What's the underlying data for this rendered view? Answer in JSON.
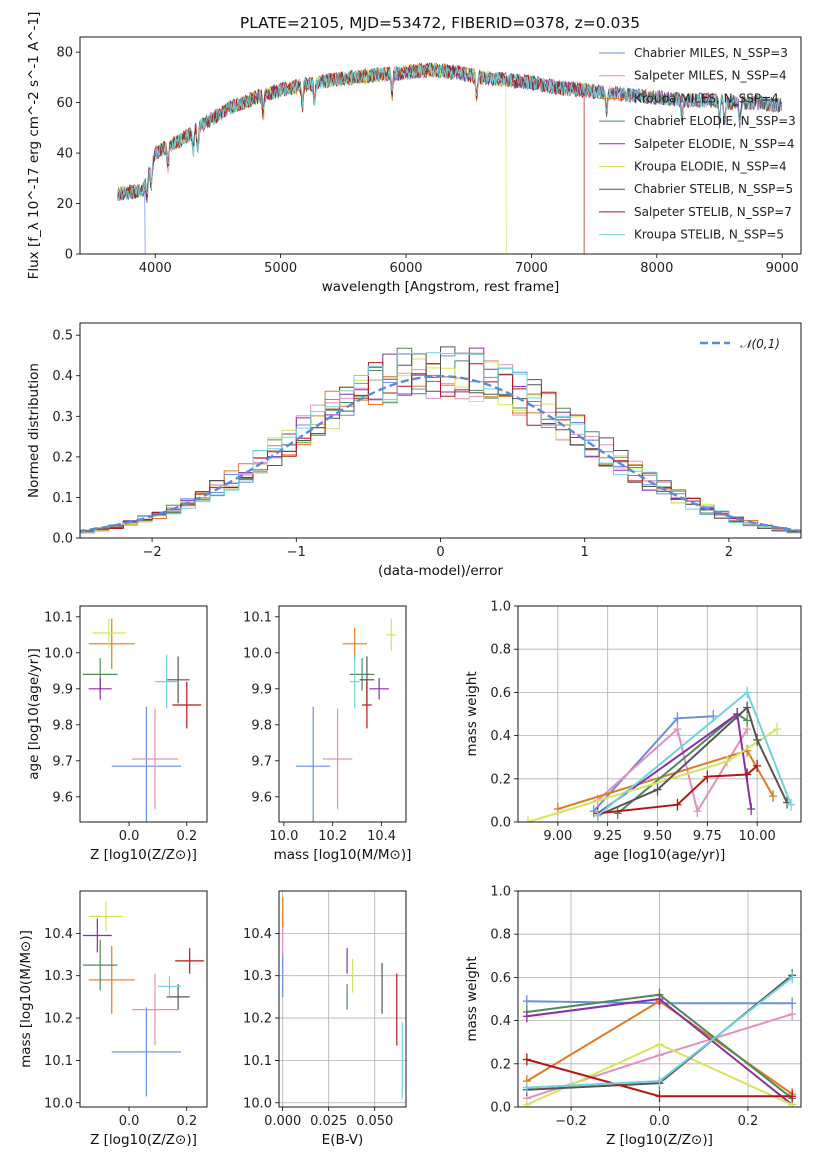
{
  "title": "PLATE=2105, MJD=53472, FIBERID=0378, z=0.035",
  "colors": {
    "chabrier_miles": "#6a8fdc",
    "salpeter_miles": "#e58fc0",
    "kroupa_miles": "#e07b22",
    "chabrier_elodie": "#4f8a5a",
    "salpeter_elodie": "#8b2ea8",
    "kroupa_elodie": "#d4e65a",
    "chabrier_stelib": "#555555",
    "salpeter_stelib": "#b21818",
    "kroupa_stelib": "#6fd3de",
    "normal_curve": "#5b8ad8"
  },
  "legend_entries": [
    "Chabrier MILES, N_SSP=3",
    "Salpeter MILES, N_SSP=4",
    "Kroupa MILES, N_SSP=4",
    "Chabrier ELODIE, N_SSP=3",
    "Salpeter ELODIE, N_SSP=4",
    "Kroupa ELODIE, N_SSP=4",
    "Chabrier STELIB, N_SSP=5",
    "Salpeter STELIB, N_SSP=7",
    "Kroupa STELIB, N_SSP=5"
  ],
  "chart_data": [
    {
      "id": "spectrum",
      "type": "line",
      "title": "PLATE=2105, MJD=53472, FIBERID=0378, z=0.035",
      "xlabel": "wavelength [Angstrom, rest frame]",
      "ylabel": "Flux [f_λ 10^-17 erg cm^-2 s^-1 A^-1]",
      "xlim": [
        3400,
        9150
      ],
      "ylim": [
        0,
        86
      ],
      "xticks": [
        4000,
        5000,
        6000,
        7000,
        8000,
        9000
      ],
      "yticks": [
        0,
        20,
        40,
        60,
        80
      ],
      "continuum": {
        "wavelength": [
          3700,
          3900,
          4000,
          4200,
          4400,
          4600,
          4800,
          5000,
          5200,
          5400,
          5600,
          5800,
          6000,
          6200,
          6400,
          6600,
          6800,
          7000,
          7200,
          7400,
          7600,
          7800,
          8000,
          8200,
          8400,
          8600,
          8800,
          9000
        ],
        "flux": [
          24,
          25,
          40,
          45,
          52,
          58,
          62,
          65,
          67,
          69,
          70,
          71,
          72,
          73,
          72,
          70,
          69,
          68,
          66,
          65,
          64,
          63,
          62,
          61,
          61,
          60,
          60,
          59
        ]
      },
      "cutoffs": [
        {
          "series": "Salpeter STELIB, N_SSP=7",
          "wavelength": 7420
        },
        {
          "series": "Kroupa ELODIE, N_SSP=4",
          "wavelength": 6800
        },
        {
          "series": "Chabrier MILES, N_SSP=3",
          "wavelength": 3920
        }
      ],
      "legend": "upper right"
    },
    {
      "id": "residuals",
      "type": "histogram",
      "xlabel": "(data-model)/error",
      "ylabel": "Normed distribution",
      "xlim": [
        -2.5,
        2.5
      ],
      "ylim": [
        0,
        0.53
      ],
      "xticks": [
        -2,
        -1,
        0,
        1,
        2
      ],
      "yticks": [
        0.0,
        0.1,
        0.2,
        0.3,
        0.4,
        0.5
      ],
      "grid": true,
      "reference": {
        "name": "𝒩(0,1)",
        "mean": 0,
        "sigma": 1
      },
      "legend": "upper right"
    },
    {
      "id": "age_vs_Z",
      "type": "scatter",
      "xlabel": "Z [log10(Z/Z⊙)]",
      "ylabel": "age [log10(age/yr)]",
      "xlim": [
        -0.17,
        0.27
      ],
      "ylim": [
        9.53,
        10.13
      ],
      "xticks": [
        0.0,
        0.2
      ],
      "yticks": [
        9.6,
        9.7,
        9.8,
        9.9,
        10.0,
        10.1
      ],
      "points": [
        {
          "x": 0.06,
          "y": 9.685,
          "xerr": 0.12,
          "yerr": 0.165
        },
        {
          "x": 0.09,
          "y": 9.705,
          "xerr": 0.08,
          "yerr": 0.14
        },
        {
          "x": -0.06,
          "y": 10.025,
          "xerr": 0.08,
          "yerr": 0.07
        },
        {
          "x": -0.1,
          "y": 9.94,
          "xerr": 0.06,
          "yerr": 0.045
        },
        {
          "x": -0.1,
          "y": 9.9,
          "xerr": 0.04,
          "yerr": 0.03
        },
        {
          "x": -0.07,
          "y": 10.055,
          "xerr": 0.06,
          "yerr": 0.04
        },
        {
          "x": 0.17,
          "y": 9.925,
          "xerr": 0.04,
          "yerr": 0.065
        },
        {
          "x": 0.2,
          "y": 9.855,
          "xerr": 0.05,
          "yerr": 0.065
        },
        {
          "x": 0.13,
          "y": 9.92,
          "xerr": 0.04,
          "yerr": 0.075
        }
      ]
    },
    {
      "id": "age_vs_mass",
      "type": "scatter",
      "xlabel": "mass [log10(M/M⊙)]",
      "ylabel": "",
      "xlim": [
        9.98,
        10.5
      ],
      "ylim": [
        9.53,
        10.13
      ],
      "xticks": [
        10.0,
        10.2,
        10.4
      ],
      "yticks": [
        9.6,
        9.7,
        9.8,
        9.9,
        10.0,
        10.1
      ],
      "points": [
        {
          "x": 10.12,
          "y": 9.685,
          "xerr": 0.07,
          "yerr": 0.165
        },
        {
          "x": 10.22,
          "y": 9.705,
          "xerr": 0.06,
          "yerr": 0.14
        },
        {
          "x": 10.29,
          "y": 10.025,
          "xerr": 0.05,
          "yerr": 0.045
        },
        {
          "x": 10.32,
          "y": 9.94,
          "xerr": 0.05,
          "yerr": 0.045
        },
        {
          "x": 10.39,
          "y": 9.9,
          "xerr": 0.04,
          "yerr": 0.03
        },
        {
          "x": 10.44,
          "y": 10.05,
          "xerr": 0.02,
          "yerr": 0.045
        },
        {
          "x": 10.34,
          "y": 9.925,
          "xerr": 0.03,
          "yerr": 0.065
        },
        {
          "x": 10.34,
          "y": 9.855,
          "xerr": 0.02,
          "yerr": 0.065
        },
        {
          "x": 10.29,
          "y": 9.92,
          "xerr": 0.02,
          "yerr": 0.075
        }
      ]
    },
    {
      "id": "weight_vs_age",
      "type": "line",
      "xlabel": "age [log10(age/yr)]",
      "ylabel": "mass weight",
      "xlim": [
        8.8,
        10.22
      ],
      "ylim": [
        0,
        1
      ],
      "xticks": [
        9.0,
        9.25,
        9.5,
        9.75,
        10.0
      ],
      "yticks": [
        0.0,
        0.2,
        0.4,
        0.6,
        0.8,
        1.0
      ],
      "grid": true,
      "series": [
        {
          "ages": [
            9.18,
            9.6,
            9.78
          ],
          "weights": [
            0.05,
            0.48,
            0.49
          ]
        },
        {
          "ages": [
            9.2,
            9.6,
            9.7,
            9.95
          ],
          "weights": [
            0.1,
            0.43,
            0.05,
            0.43
          ]
        },
        {
          "ages": [
            9.0,
            9.95,
            10.08
          ],
          "weights": [
            0.06,
            0.33,
            0.12
          ]
        },
        {
          "ages": [
            9.3,
            9.9,
            9.95
          ],
          "weights": [
            0.04,
            0.5,
            0.47
          ]
        },
        {
          "ages": [
            9.2,
            9.9,
            9.97
          ],
          "weights": [
            0.04,
            0.5,
            0.06
          ]
        },
        {
          "ages": [
            8.85,
            9.85,
            10.1
          ],
          "weights": [
            0.0,
            0.28,
            0.43
          ]
        },
        {
          "ages": [
            9.2,
            9.5,
            9.95,
            10.0,
            10.15
          ],
          "weights": [
            0.03,
            0.15,
            0.53,
            0.38,
            0.09
          ]
        },
        {
          "ages": [
            9.2,
            9.6,
            9.75,
            9.95,
            10.0
          ],
          "weights": [
            0.04,
            0.08,
            0.21,
            0.22,
            0.26
          ]
        },
        {
          "ages": [
            9.2,
            9.95,
            10.17
          ],
          "weights": [
            0.03,
            0.6,
            0.08
          ]
        }
      ]
    },
    {
      "id": "mass_vs_Z",
      "type": "scatter",
      "xlabel": "Z [log10(Z/Z⊙)]",
      "ylabel": "mass [log10(M/M⊙)]",
      "xlim": [
        -0.17,
        0.27
      ],
      "ylim": [
        9.99,
        10.5
      ],
      "xticks": [
        0.0,
        0.2
      ],
      "yticks": [
        10.0,
        10.1,
        10.2,
        10.3,
        10.4
      ],
      "points": [
        {
          "x": 0.06,
          "y": 10.12,
          "xerr": 0.12,
          "yerr": 0.105
        },
        {
          "x": 0.09,
          "y": 10.22,
          "xerr": 0.08,
          "yerr": 0.085
        },
        {
          "x": -0.06,
          "y": 10.29,
          "xerr": 0.08,
          "yerr": 0.08
        },
        {
          "x": -0.1,
          "y": 10.325,
          "xerr": 0.06,
          "yerr": 0.06
        },
        {
          "x": -0.11,
          "y": 10.395,
          "xerr": 0.05,
          "yerr": 0.04
        },
        {
          "x": -0.08,
          "y": 10.44,
          "xerr": 0.06,
          "yerr": 0.035
        },
        {
          "x": 0.17,
          "y": 10.25,
          "xerr": 0.04,
          "yerr": 0.03
        },
        {
          "x": 0.21,
          "y": 10.335,
          "xerr": 0.05,
          "yerr": 0.03
        },
        {
          "x": 0.14,
          "y": 10.275,
          "xerr": 0.04,
          "yerr": 0.025
        }
      ]
    },
    {
      "id": "mass_vs_EBV",
      "type": "errorbar",
      "xlabel": "E(B-V)",
      "ylabel": "",
      "xlim": [
        -0.002,
        0.067
      ],
      "ylim": [
        9.99,
        10.5
      ],
      "xticks": [
        0.0,
        0.025,
        0.05
      ],
      "yticks": [
        10.0,
        10.1,
        10.2,
        10.3,
        10.4
      ],
      "grid": true,
      "points": [
        {
          "x": 0.0,
          "y": 10.3,
          "yerr": 0.05
        },
        {
          "x": 0.0,
          "y": 10.39,
          "yerr": 0.04
        },
        {
          "x": 0.0,
          "y": 10.45,
          "yerr": 0.035
        },
        {
          "x": 0.035,
          "y": 10.25,
          "yerr": 0.03
        },
        {
          "x": 0.035,
          "y": 10.335,
          "yerr": 0.03
        },
        {
          "x": 0.038,
          "y": 10.3,
          "yerr": 0.04
        },
        {
          "x": 0.054,
          "y": 10.27,
          "yerr": 0.06
        },
        {
          "x": 0.062,
          "y": 10.22,
          "yerr": 0.085
        },
        {
          "x": 0.065,
          "y": 10.1,
          "yerr": 0.09
        }
      ]
    },
    {
      "id": "weight_vs_Z",
      "type": "line",
      "xlabel": "Z [log10(Z/Z⊙)]",
      "ylabel": "mass weight",
      "xlim": [
        -0.32,
        0.32
      ],
      "ylim": [
        0,
        1
      ],
      "xticks": [
        -0.2,
        0.0,
        0.2
      ],
      "yticks": [
        0.0,
        0.2,
        0.4,
        0.6,
        0.8,
        1.0
      ],
      "grid": true,
      "series": [
        {
          "Z": [
            -0.3,
            0.0,
            0.3
          ],
          "weights": [
            0.49,
            0.48,
            0.48
          ]
        },
        {
          "Z": [
            -0.3,
            0.0,
            0.3
          ],
          "weights": [
            0.04,
            0.24,
            0.43
          ]
        },
        {
          "Z": [
            -0.3,
            0.0,
            0.3
          ],
          "weights": [
            0.12,
            0.49,
            0.06
          ]
        },
        {
          "Z": [
            -0.3,
            0.0,
            0.3
          ],
          "weights": [
            0.44,
            0.52,
            0.04
          ]
        },
        {
          "Z": [
            -0.3,
            0.0,
            0.3
          ],
          "weights": [
            0.42,
            0.5,
            0.01
          ]
        },
        {
          "Z": [
            -0.3,
            0.0,
            0.3
          ],
          "weights": [
            0.01,
            0.29,
            0.01
          ]
        },
        {
          "Z": [
            -0.3,
            0.0,
            0.3
          ],
          "weights": [
            0.08,
            0.11,
            0.61
          ]
        },
        {
          "Z": [
            -0.3,
            0.0,
            0.3
          ],
          "weights": [
            0.22,
            0.05,
            0.05
          ]
        },
        {
          "Z": [
            -0.3,
            0.0,
            0.3
          ],
          "weights": [
            0.09,
            0.12,
            0.6
          ]
        }
      ]
    }
  ]
}
